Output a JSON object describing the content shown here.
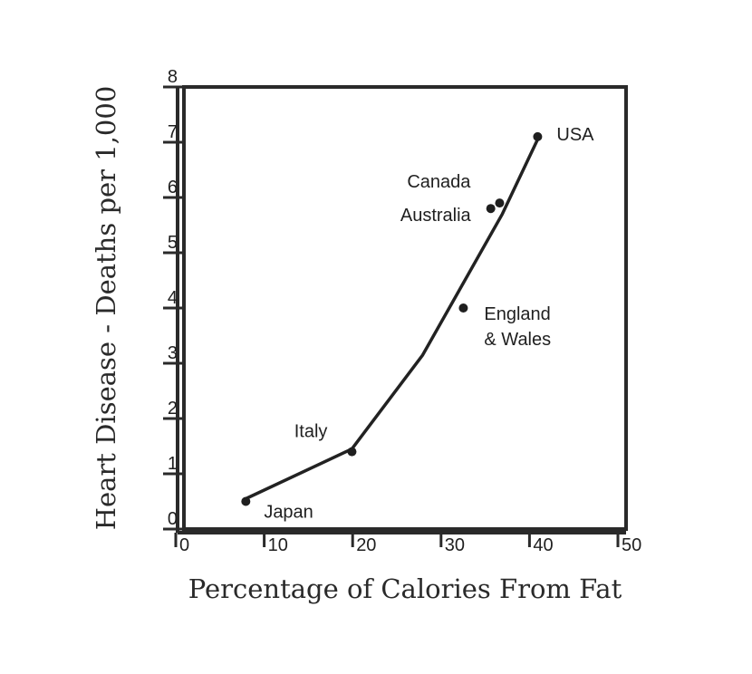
{
  "chart_data": {
    "type": "scatter",
    "xlabel": "Percentage of Calories From Fat",
    "ylabel": "Heart Disease - Deaths per 1,000",
    "xlim": [
      0,
      50
    ],
    "ylim": [
      0,
      8
    ],
    "x_ticks": [
      0,
      10,
      20,
      30,
      40,
      50
    ],
    "y_ticks": [
      0,
      1,
      2,
      3,
      4,
      5,
      6,
      7,
      8
    ],
    "grid": false,
    "points": [
      {
        "label": "Japan",
        "x": 7,
        "y": 0.5
      },
      {
        "label": "Italy",
        "x": 19,
        "y": 1.4
      },
      {
        "label": "England\n& Wales",
        "x": 31.6,
        "y": 4.0
      },
      {
        "label": "Australia",
        "x": 34.7,
        "y": 5.8
      },
      {
        "label": "Canada",
        "x": 35.7,
        "y": 5.9
      },
      {
        "label": "USA",
        "x": 40,
        "y": 7.1
      }
    ],
    "trend_line": [
      {
        "x": 7,
        "y": 0.55
      },
      {
        "x": 19,
        "y": 1.45
      },
      {
        "x": 27,
        "y": 3.15
      },
      {
        "x": 36,
        "y": 5.7
      },
      {
        "x": 40,
        "y": 7.05
      }
    ]
  }
}
